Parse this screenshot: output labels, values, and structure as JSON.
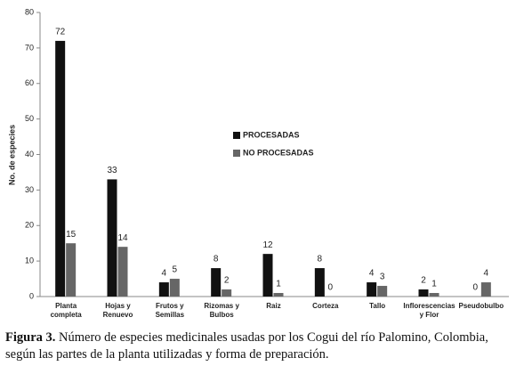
{
  "chart_data": {
    "type": "bar",
    "y_label": "No. de especies",
    "categories": [
      "Planta\ncompleta",
      "Hojas y\nRenuevo",
      "Frutos y\nSemillas",
      "Rizomas y\nBulbos",
      "Raiz",
      "Corteza",
      "Tallo",
      "Inflorescencias\ny Flor",
      "Pseudobulbo"
    ],
    "series": [
      {
        "name": "PROCESADAS",
        "color": "#111111",
        "values": [
          72,
          33,
          4,
          8,
          12,
          8,
          4,
          2,
          0
        ]
      },
      {
        "name": "NO PROCESADAS",
        "color": "#666666",
        "values": [
          15,
          14,
          5,
          2,
          1,
          0,
          3,
          1,
          4
        ]
      }
    ],
    "ylim": [
      0,
      80
    ],
    "yticks": [
      0,
      10,
      20,
      30,
      40,
      50,
      60,
      70,
      80
    ],
    "grid": false
  },
  "caption": {
    "label": "Figura 3.",
    "text": "Número de especies medicinales usadas por los Cogui del río Palomino, Colombia, según las partes de la planta utilizadas y forma de preparación."
  }
}
